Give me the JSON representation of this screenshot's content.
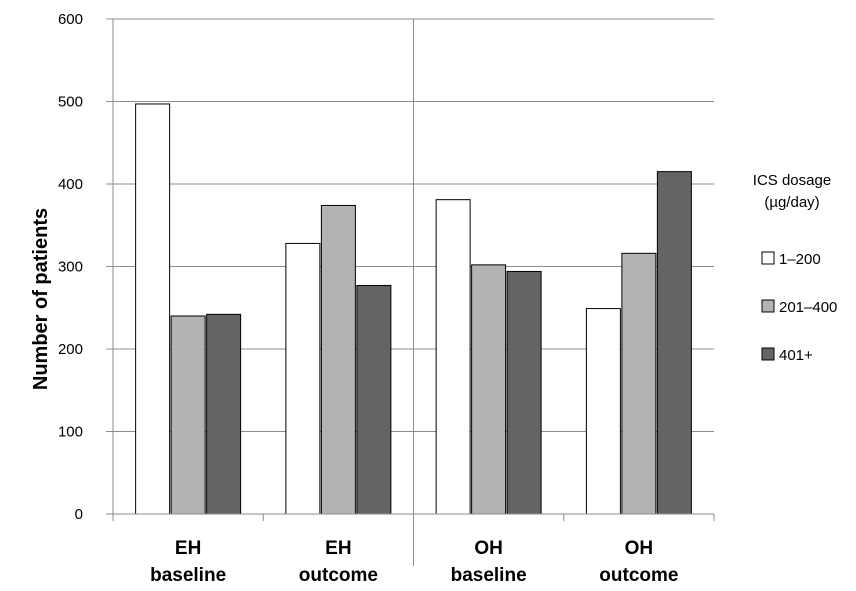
{
  "chart_data": {
    "type": "bar",
    "ylabel": "Number of patients",
    "ylim": [
      0,
      600
    ],
    "yticks": [
      "0",
      "100",
      "200",
      "300",
      "400",
      "500",
      "600"
    ],
    "grid": true,
    "categories": [
      [
        "EH",
        "baseline"
      ],
      [
        "EH",
        "outcome"
      ],
      [
        "OH",
        "baseline"
      ],
      [
        "OH",
        "outcome"
      ]
    ],
    "legend": {
      "title": [
        "ICS dosage",
        "(µg/day)"
      ],
      "placement": "right"
    },
    "series": [
      {
        "name": "1–200",
        "color": "#ffffff",
        "values": [
          497,
          328,
          381,
          249
        ]
      },
      {
        "name": "201–400",
        "color": "#b3b3b3",
        "values": [
          240,
          374,
          302,
          316
        ]
      },
      {
        "name": "401+",
        "color": "#646464",
        "values": [
          242,
          277,
          294,
          415
        ]
      }
    ]
  }
}
